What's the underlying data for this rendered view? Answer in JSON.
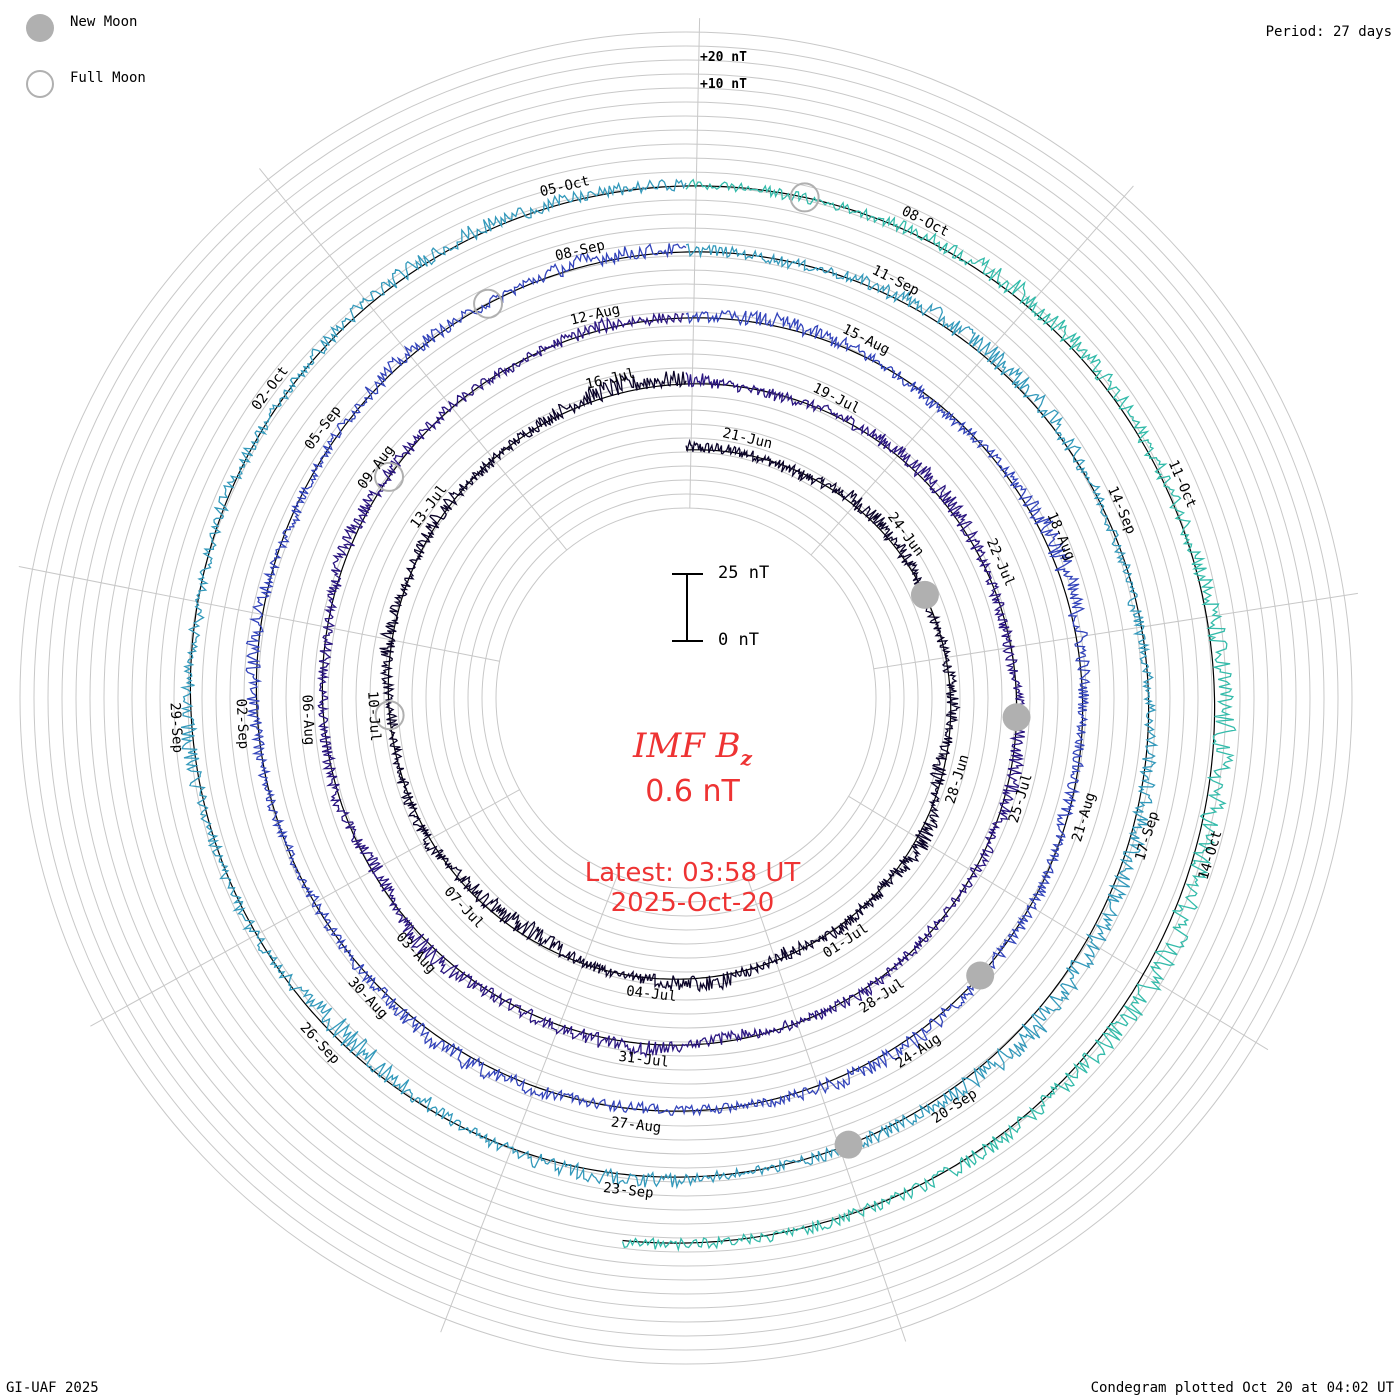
{
  "legend": {
    "new_moon_label": "New Moon",
    "full_moon_label": "Full Moon",
    "new_moon_color": "#b0b0b0",
    "full_moon_color": "#b0b0b0"
  },
  "header": {
    "period": "Period: 27 days"
  },
  "footer": {
    "credit": "GI-UAF 2025",
    "plotted": "Condegram plotted Oct 20 at 04:02 UT"
  },
  "center": {
    "title_main": "IMF B",
    "title_sub": "z",
    "value": "0.6 nT",
    "latest": "Latest: 03:58 UT",
    "latest_date": "2025-Oct-20"
  },
  "scale_bar": {
    "top_label": "25 nT",
    "bottom_label": "0 nT"
  },
  "chart_data": {
    "type": "line",
    "variant": "spiral condegram",
    "period_days": 27,
    "start_date": "2025-06-20",
    "end_date": "2025-10-20",
    "ring_labels": [
      "+20 nT",
      "+10 nT"
    ],
    "turn_colors": [
      "#0a0328",
      "#2a1580",
      "#3344bb",
      "#3399bb",
      "#33bbaa",
      "#77cc33",
      "#bbaa22",
      "#cc6611",
      "#cc2222"
    ],
    "date_labels": [
      {
        "day": 1,
        "label": "21-Jun"
      },
      {
        "day": 4,
        "label": "24-Jun"
      },
      {
        "day": 8,
        "label": "28-Jun"
      },
      {
        "day": 11,
        "label": "01-Jul"
      },
      {
        "day": 14,
        "label": "04-Jul"
      },
      {
        "day": 17,
        "label": "07-Jul"
      },
      {
        "day": 20,
        "label": "10-Jul"
      },
      {
        "day": 23,
        "label": "13-Jul"
      },
      {
        "day": 26,
        "label": "16-Jul"
      },
      {
        "day": 29,
        "label": "19-Jul"
      },
      {
        "day": 32,
        "label": "22-Jul"
      },
      {
        "day": 35,
        "label": "25-Jul"
      },
      {
        "day": 38,
        "label": "28-Jul"
      },
      {
        "day": 41,
        "label": "31-Jul"
      },
      {
        "day": 44,
        "label": "03-Aug"
      },
      {
        "day": 47,
        "label": "06-Aug"
      },
      {
        "day": 50,
        "label": "09-Aug"
      },
      {
        "day": 53,
        "label": "12-Aug"
      },
      {
        "day": 56,
        "label": "15-Aug"
      },
      {
        "day": 59,
        "label": "18-Aug"
      },
      {
        "day": 62,
        "label": "21-Aug"
      },
      {
        "day": 65,
        "label": "24-Aug"
      },
      {
        "day": 68,
        "label": "27-Aug"
      },
      {
        "day": 71,
        "label": "30-Aug"
      },
      {
        "day": 74,
        "label": "02-Sep"
      },
      {
        "day": 77,
        "label": "05-Sep"
      },
      {
        "day": 80,
        "label": "08-Sep"
      },
      {
        "day": 83,
        "label": "11-Sep"
      },
      {
        "day": 86,
        "label": "14-Sep"
      },
      {
        "day": 89,
        "label": "17-Sep"
      },
      {
        "day": 92,
        "label": "20-Sep"
      },
      {
        "day": 95,
        "label": "23-Sep"
      },
      {
        "day": 98,
        "label": "26-Sep"
      },
      {
        "day": 101,
        "label": "29-Sep"
      },
      {
        "day": 104,
        "label": "02-Oct"
      },
      {
        "day": 107,
        "label": "05-Oct"
      },
      {
        "day": 110,
        "label": "08-Oct"
      },
      {
        "day": 113,
        "label": "11-Oct"
      },
      {
        "day": 116,
        "label": "14-Oct"
      }
    ],
    "new_moon_dates": [
      "2025-06-25",
      "2025-07-24",
      "2025-08-23",
      "2025-09-21"
    ],
    "full_moon_dates": [
      "2025-07-10",
      "2025-08-09",
      "2025-09-07",
      "2025-10-07"
    ],
    "bz_daily_nT": [
      1.0,
      0.5,
      -1.0,
      2.0,
      1.5,
      -0.5,
      0.0,
      1.0,
      -2.0,
      3.0,
      0.5,
      1.0,
      -1.5,
      2.5,
      1.0,
      0.0,
      -3.0,
      -2.0,
      1.0,
      0.5,
      -1.0,
      2.0,
      0.0,
      1.5,
      -0.5,
      1.0,
      3.0,
      2.0,
      -1.0,
      0.5,
      1.5,
      2.5,
      0.0,
      -1.0,
      1.0,
      2.0,
      0.5,
      -0.5,
      1.0,
      0.0,
      -1.5,
      2.0,
      1.0,
      0.5,
      3.0,
      -2.0,
      1.0,
      0.0,
      -1.0,
      2.0,
      1.0,
      0.5,
      -0.5,
      1.5,
      0.0,
      2.0,
      1.0,
      -1.0,
      0.5,
      3.5,
      2.0,
      0.0,
      -1.5,
      1.0,
      0.5,
      2.0,
      1.5,
      0.0,
      -1.0,
      1.0,
      2.5,
      1.0,
      -0.5,
      0.0,
      1.0,
      2.0,
      -1.0,
      0.5,
      1.5,
      0.0,
      2.0,
      1.0,
      -0.5,
      1.5,
      3.0,
      2.0,
      0.0,
      -1.0,
      1.0,
      2.5,
      3.0,
      4.0,
      2.0,
      1.0,
      0.0,
      2.0,
      1.5,
      -2.0,
      -4.0,
      1.0,
      0.5,
      2.0,
      -1.0,
      1.0,
      0.0,
      1.5,
      2.0,
      1.0,
      0.5,
      -0.5,
      1.0,
      3.0,
      2.0,
      1.0,
      2.5,
      4.0,
      3.0,
      5.0,
      2.0,
      1.5,
      0.6
    ]
  }
}
